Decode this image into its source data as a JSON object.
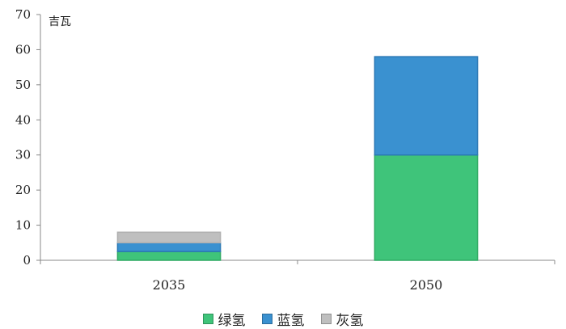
{
  "chart_data": {
    "type": "bar",
    "stacked": true,
    "categories": [
      "2035",
      "2050"
    ],
    "series": [
      {
        "name": "绿氢",
        "values": [
          2.5,
          30
        ],
        "color": "#3fc47a"
      },
      {
        "name": "蓝氢",
        "values": [
          2.5,
          28
        ],
        "color": "#3a91d0"
      },
      {
        "name": "灰氢",
        "values": [
          3,
          0
        ],
        "color": "#bfbfbf"
      }
    ],
    "ylim": [
      0,
      70
    ],
    "yticks": [
      0,
      10,
      20,
      30,
      40,
      50,
      60,
      70
    ],
    "ylabel": "吉瓦",
    "grid": false,
    "legend": "bottom"
  }
}
